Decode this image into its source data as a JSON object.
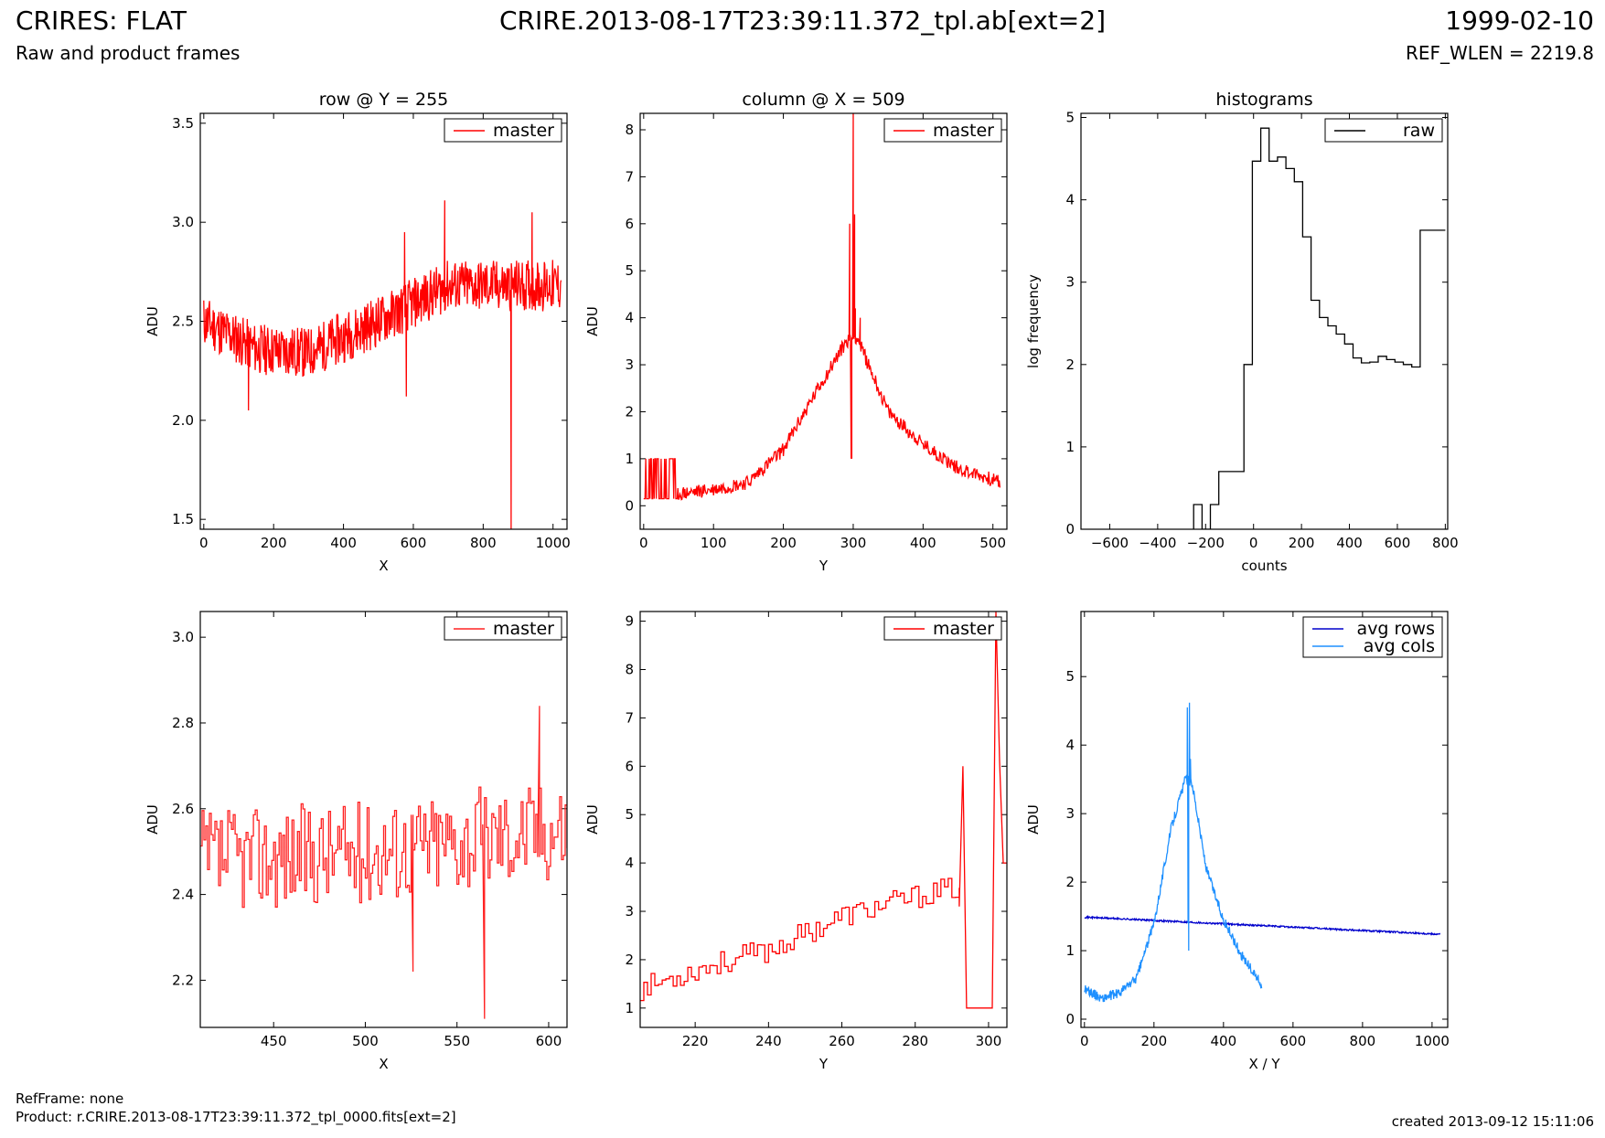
{
  "header": {
    "title": "CRIRES: FLAT",
    "subtitle": "Raw and product frames",
    "file": "CRIRE.2013-08-17T23:39:11.372_tpl.ab[ext=2]",
    "date": "1999-02-10",
    "ref_wlen": "REF_WLEN = 2219.8"
  },
  "footer": {
    "ref_frame": "RefFrame: none",
    "product": "Product: r.CRIRE.2013-08-17T23:39:11.372_tpl_0000.fits[ext=2]",
    "created": "created 2013-09-12 15:11:06"
  },
  "colors": {
    "red": "#ff0000",
    "black": "#000000",
    "avg_rows": "#0000cc",
    "avg_cols": "#1e90ff"
  },
  "chart_data": [
    {
      "type": "line",
      "title": "row @ Y = 255",
      "xlabel": "X",
      "ylabel": "ADU",
      "xlim": [
        -10,
        1040
      ],
      "ylim": [
        1.45,
        3.55
      ],
      "xticks": [
        0,
        200,
        400,
        600,
        800,
        1000
      ],
      "yticks": [
        1.5,
        2.0,
        2.5,
        3.0,
        3.5
      ],
      "ytick_labels": [
        "1.5",
        "2.0",
        "2.5",
        "3.0",
        "3.5"
      ],
      "legend": "top-right",
      "series": [
        {
          "name": "master",
          "color": "#ff0000",
          "style": "noise",
          "seed": 11,
          "trend": [
            [
              0,
              2.5
            ],
            [
              150,
              2.36
            ],
            [
              300,
              2.34
            ],
            [
              500,
              2.5
            ],
            [
              700,
              2.68
            ],
            [
              1024,
              2.68
            ]
          ],
          "noise": 0.13,
          "spikes": [
            [
              880,
              1.45
            ],
            [
              690,
              3.11
            ],
            [
              940,
              3.05
            ],
            [
              575,
              2.95
            ],
            [
              128,
              2.05
            ],
            [
              580,
              2.12
            ]
          ]
        }
      ]
    },
    {
      "type": "line",
      "title": "column @ X = 509",
      "xlabel": "Y",
      "ylabel": "ADU",
      "xlim": [
        -5,
        520
      ],
      "ylim": [
        -0.5,
        8.35
      ],
      "xticks": [
        0,
        100,
        200,
        300,
        400,
        500
      ],
      "yticks": [
        0,
        1,
        2,
        3,
        4,
        5,
        6,
        7,
        8
      ],
      "ytick_labels": [
        "0",
        "1",
        "2",
        "3",
        "4",
        "5",
        "6",
        "7",
        "8"
      ],
      "legend": "top-right",
      "series": [
        {
          "name": "master",
          "color": "#ff0000",
          "style": "noise",
          "seed": 23,
          "trend": [
            [
              0,
              0.15
            ],
            [
              100,
              0.35
            ],
            [
              150,
              0.5
            ],
            [
              200,
              1.2
            ],
            [
              250,
              2.5
            ],
            [
              290,
              3.5
            ],
            [
              305,
              3.6
            ],
            [
              350,
              2.0
            ],
            [
              400,
              1.3
            ],
            [
              450,
              0.8
            ],
            [
              510,
              0.5
            ]
          ],
          "noise": 0.15,
          "binary_region": [
            0,
            48,
            0.15,
            1.0
          ],
          "spikes": [
            [
              295,
              6.0
            ],
            [
              297,
              1.0
            ],
            [
              298,
              1.0
            ],
            [
              300,
              8.35
            ],
            [
              302,
              6.2
            ],
            [
              303,
              4.2
            ],
            [
              310,
              4.0
            ]
          ]
        }
      ]
    },
    {
      "type": "line",
      "title": "histograms",
      "xlabel": "counts",
      "ylabel": "log frequency",
      "xlim": [
        -720,
        810
      ],
      "ylim": [
        0,
        5.05
      ],
      "xticks": [
        -600,
        -400,
        -200,
        0,
        200,
        400,
        600,
        800
      ],
      "xtick_labels": [
        "−600",
        "−400",
        "−200",
        "0",
        "200",
        "400",
        "600",
        "800"
      ],
      "yticks": [
        0,
        1,
        2,
        3,
        4,
        5
      ],
      "ytick_labels": [
        "0",
        "1",
        "2",
        "3",
        "4",
        "5"
      ],
      "legend": "top-right",
      "series": [
        {
          "name": "raw",
          "color": "#000000",
          "style": "steps",
          "edges": [
            -250,
            -215,
            -180,
            -145,
            -110,
            -75,
            -40,
            -5,
            30,
            65,
            100,
            135,
            170,
            205,
            240,
            275,
            310,
            345,
            380,
            415,
            450,
            485,
            520,
            555,
            590,
            625,
            660,
            695,
            730,
            765,
            800
          ],
          "values": [
            0.3,
            0,
            0.3,
            0.7,
            0.7,
            0.7,
            2.0,
            4.47,
            4.87,
            4.47,
            4.52,
            4.38,
            4.22,
            3.55,
            2.78,
            2.57,
            2.47,
            2.37,
            2.25,
            2.08,
            2.02,
            2.03,
            2.1,
            2.06,
            2.03,
            2.0,
            1.97,
            3.63,
            3.63,
            3.63
          ]
        }
      ]
    },
    {
      "type": "line",
      "title": "",
      "xlabel": "X",
      "ylabel": "ADU",
      "xlim": [
        410,
        610
      ],
      "ylim": [
        2.09,
        3.06
      ],
      "xticks": [
        450,
        500,
        550,
        600
      ],
      "yticks": [
        2.2,
        2.4,
        2.6,
        2.8,
        3.0
      ],
      "ytick_labels": [
        "2.2",
        "2.4",
        "2.6",
        "2.8",
        "3.0"
      ],
      "legend": "top-right",
      "series": [
        {
          "name": "master",
          "color": "#ff2222",
          "style": "noise-steps",
          "seed": 37,
          "trend": [
            [
              410,
              2.48
            ],
            [
              500,
              2.5
            ],
            [
              610,
              2.56
            ]
          ],
          "noise": 0.12,
          "spikes": [
            [
              565,
              2.11
            ],
            [
              595,
              2.84
            ],
            [
              526,
              2.22
            ]
          ]
        }
      ]
    },
    {
      "type": "line",
      "title": "",
      "xlabel": "Y",
      "ylabel": "ADU",
      "xlim": [
        205,
        305
      ],
      "ylim": [
        0.6,
        9.2
      ],
      "xticks": [
        220,
        240,
        260,
        280,
        300
      ],
      "yticks": [
        1,
        2,
        3,
        4,
        5,
        6,
        7,
        8,
        9
      ],
      "ytick_labels": [
        "1",
        "2",
        "3",
        "4",
        "5",
        "6",
        "7",
        "8",
        "9"
      ],
      "legend": "top-right",
      "series": [
        {
          "name": "master",
          "color": "#ff0000",
          "style": "noise-steps",
          "seed": 53,
          "trend": [
            [
              205,
              1.4
            ],
            [
              220,
              1.8
            ],
            [
              240,
              2.2
            ],
            [
              260,
              2.9
            ],
            [
              280,
              3.3
            ],
            [
              292,
              3.5
            ]
          ],
          "noise": 0.25,
          "xmax": 292,
          "tail": [
            [
              292,
              3.1
            ],
            [
              293,
              6.0
            ],
            [
              294,
              1.0
            ],
            [
              301,
              1.0
            ],
            [
              302,
              9.2
            ],
            [
              303,
              6.1
            ],
            [
              304,
              4.0
            ],
            [
              305,
              4.0
            ]
          ]
        }
      ]
    },
    {
      "type": "line",
      "title": "",
      "xlabel": "X / Y",
      "ylabel": "ADU",
      "xlim": [
        -10,
        1045
      ],
      "ylim": [
        -0.12,
        5.95
      ],
      "xticks": [
        0,
        200,
        400,
        600,
        800,
        1000
      ],
      "yticks": [
        0,
        1,
        2,
        3,
        4,
        5
      ],
      "ytick_labels": [
        "0",
        "1",
        "2",
        "3",
        "4",
        "5"
      ],
      "legend": "top-right",
      "series": [
        {
          "name": "avg rows",
          "color": "#0000cc",
          "style": "noise",
          "seed": 71,
          "trend": [
            [
              0,
              1.49
            ],
            [
              1024,
              1.24
            ]
          ],
          "noise": 0.012
        },
        {
          "name": "avg cols",
          "color": "#1e90ff",
          "style": "noise",
          "seed": 89,
          "trend": [
            [
              0,
              0.45
            ],
            [
              50,
              0.3
            ],
            [
              100,
              0.38
            ],
            [
              150,
              0.6
            ],
            [
              200,
              1.4
            ],
            [
              250,
              2.8
            ],
            [
              290,
              3.5
            ],
            [
              310,
              3.45
            ],
            [
              350,
              2.2
            ],
            [
              400,
              1.45
            ],
            [
              450,
              0.95
            ],
            [
              510,
              0.5
            ]
          ],
          "noise": 0.07,
          "spikes": [
            [
              296,
              4.55
            ],
            [
              298,
              1.4
            ],
            [
              300,
              1.0
            ],
            [
              302,
              4.62
            ],
            [
              305,
              3.8
            ]
          ]
        }
      ]
    }
  ]
}
